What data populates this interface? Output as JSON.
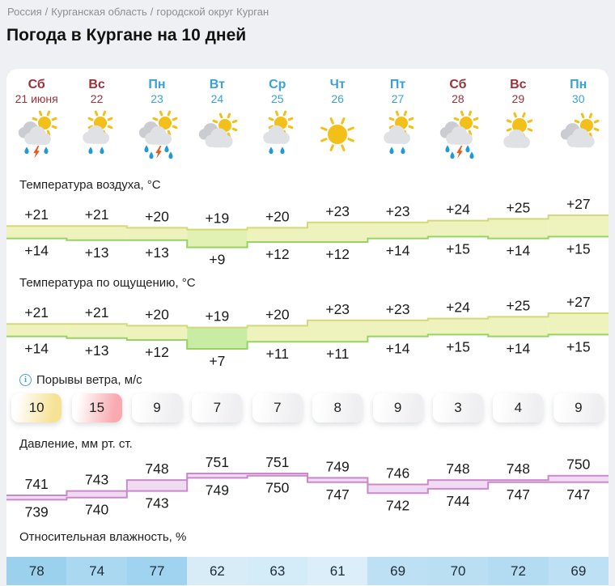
{
  "breadcrumb": {
    "items": [
      "Россия",
      "Курганская область",
      "городской округ Курган"
    ],
    "separator": "/"
  },
  "title": "Погода в Кургане на 10 дней",
  "days": [
    {
      "name": "Сб",
      "date": "21 июня",
      "weekend": true,
      "icon": "storm"
    },
    {
      "name": "Вс",
      "date": "22",
      "weekend": true,
      "icon": "rain"
    },
    {
      "name": "Пн",
      "date": "23",
      "weekend": false,
      "icon": "storm-heavy"
    },
    {
      "name": "Вт",
      "date": "24",
      "weekend": false,
      "icon": "sun-clouds"
    },
    {
      "name": "Ср",
      "date": "25",
      "weekend": false,
      "icon": "rain"
    },
    {
      "name": "Чт",
      "date": "26",
      "weekend": false,
      "icon": "sun"
    },
    {
      "name": "Пт",
      "date": "27",
      "weekend": false,
      "icon": "rain"
    },
    {
      "name": "Сб",
      "date": "28",
      "weekend": true,
      "icon": "storm-heavy"
    },
    {
      "name": "Вс",
      "date": "29",
      "weekend": true,
      "icon": "sun-cloud"
    },
    {
      "name": "Пн",
      "date": "30",
      "weekend": false,
      "icon": "sun-clouds"
    }
  ],
  "sections": {
    "air_temp_label": "Температура воздуха, °C",
    "feels_label": "Температура по ощущению, °C",
    "wind_label": "Порывы ветра, м/с",
    "pressure_label": "Давление, мм рт. ст.",
    "humidity_label": "Относительная влажность, %"
  },
  "chart_data": [
    {
      "type": "area",
      "name": "air-temperature",
      "title": "Температура воздуха, °C",
      "categories": [
        "Сб 21 июня",
        "Вс 22",
        "Пн 23",
        "Вт 24",
        "Ср 25",
        "Чт 26",
        "Пт 27",
        "Сб 28",
        "Вс 29",
        "Пн 30"
      ],
      "series": [
        {
          "name": "max",
          "values": [
            21,
            21,
            20,
            19,
            20,
            23,
            23,
            24,
            25,
            27
          ]
        },
        {
          "name": "min",
          "values": [
            14,
            13,
            13,
            9,
            12,
            12,
            14,
            15,
            14,
            15
          ]
        }
      ]
    },
    {
      "type": "area",
      "name": "feels-like",
      "title": "Температура по ощущению, °C",
      "categories": [
        "Сб 21 июня",
        "Вс 22",
        "Пн 23",
        "Вт 24",
        "Ср 25",
        "Чт 26",
        "Пт 27",
        "Сб 28",
        "Вс 29",
        "Пн 30"
      ],
      "series": [
        {
          "name": "max",
          "values": [
            21,
            21,
            20,
            19,
            20,
            23,
            23,
            24,
            25,
            27
          ]
        },
        {
          "name": "min",
          "values": [
            14,
            13,
            12,
            7,
            11,
            11,
            14,
            15,
            14,
            15
          ]
        }
      ]
    },
    {
      "type": "bar",
      "name": "wind-gusts",
      "title": "Порывы ветра, м/с",
      "categories": [
        "Сб 21 июня",
        "Вс 22",
        "Пн 23",
        "Вт 24",
        "Ср 25",
        "Чт 26",
        "Пт 27",
        "Сб 28",
        "Вс 29",
        "Пн 30"
      ],
      "values": [
        10,
        15,
        9,
        7,
        7,
        8,
        9,
        3,
        4,
        9
      ]
    },
    {
      "type": "area",
      "name": "pressure",
      "title": "Давление, мм рт. ст.",
      "categories": [
        "Сб 21 июня",
        "Вс 22",
        "Пн 23",
        "Вт 24",
        "Ср 25",
        "Чт 26",
        "Пт 27",
        "Сб 28",
        "Вс 29",
        "Пн 30"
      ],
      "series": [
        {
          "name": "max",
          "values": [
            741,
            743,
            748,
            751,
            751,
            749,
            746,
            748,
            748,
            750
          ]
        },
        {
          "name": "min",
          "values": [
            739,
            740,
            743,
            749,
            750,
            747,
            742,
            744,
            747,
            747
          ]
        }
      ]
    },
    {
      "type": "bar",
      "name": "humidity",
      "title": "Относительная влажность, %",
      "categories": [
        "Сб 21 июня",
        "Вс 22",
        "Пн 23",
        "Вт 24",
        "Ср 25",
        "Чт 26",
        "Пт 27",
        "Сб 28",
        "Вс 29",
        "Пн 30"
      ],
      "values": [
        78,
        74,
        77,
        62,
        63,
        61,
        69,
        70,
        72,
        69
      ]
    }
  ],
  "colors": {
    "weekend": "#9e3038",
    "weekday": "#3aa2d2",
    "sun": "#f2c018",
    "cloud_back": "#cbccd1",
    "cloud_front": "#dfe1e5",
    "drop": "#1f9ad6",
    "bolt": "#e55c1e",
    "band_warm": "#eef2bc",
    "band_mid": "#e0f1b3",
    "band_cool": "#c9eca4",
    "band_top_stroke": "#d3d979",
    "band_bottom_stroke": "#96d363",
    "pressure_fill": "#f1dbf2",
    "pressure_stroke": "#c989cb",
    "pill_yellow": "#f6e295",
    "pill_pink": "#f7abb0",
    "pill_gray": "#efeff1",
    "humidity_low": "#dceef9",
    "humidity_high": "#9cd1ee",
    "info_icon": "#4a9fd4"
  }
}
